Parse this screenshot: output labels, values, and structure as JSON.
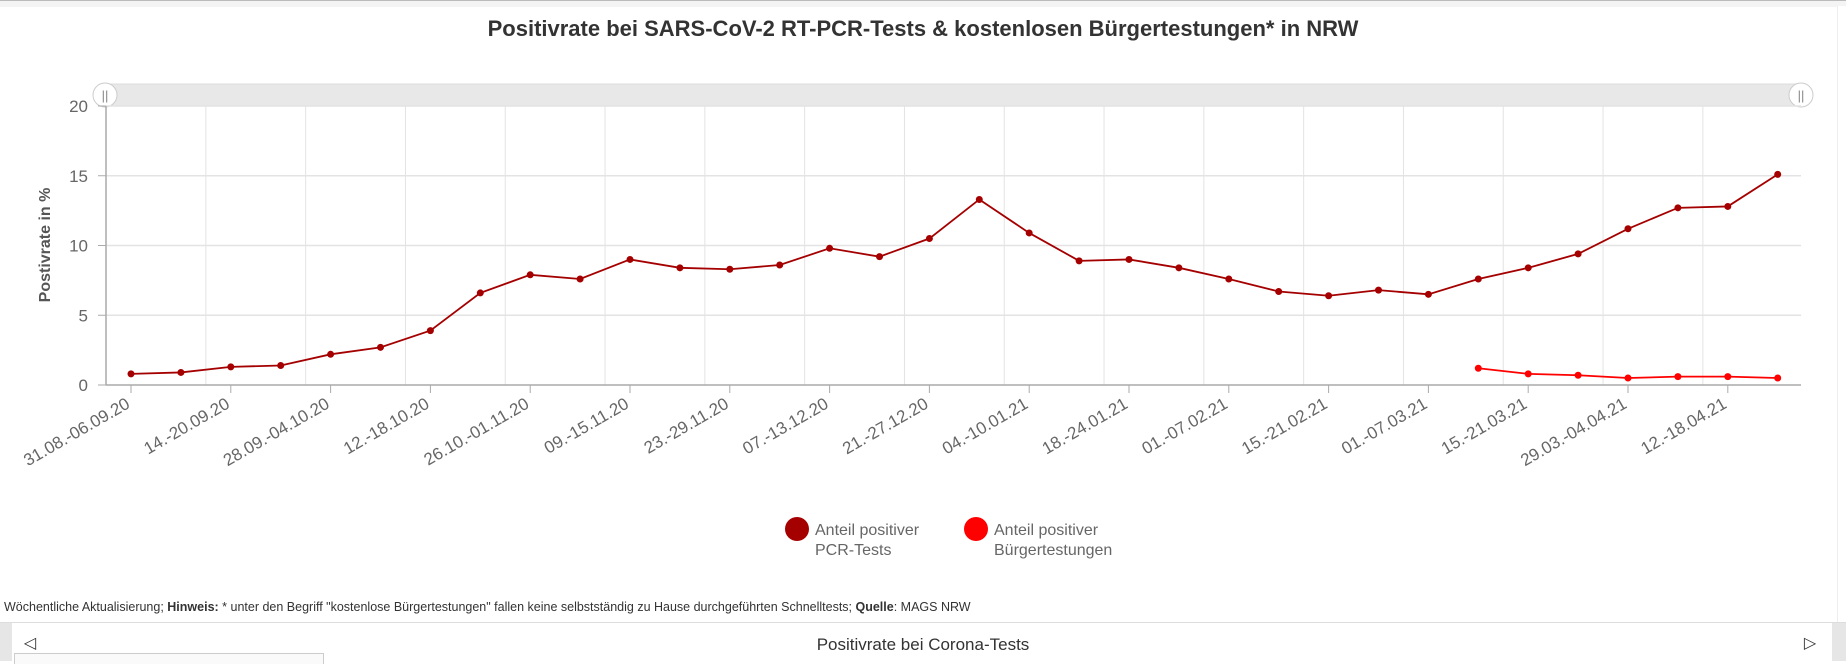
{
  "chart_data": {
    "type": "line",
    "title": "Positivrate bei SARS-CoV-2 RT-PCR-Tests & kostenlosen Bürgertestungen* in NRW",
    "xlabel": "",
    "ylabel": "Postivrate in %",
    "ylim": [
      0,
      20
    ],
    "yticks": [
      0,
      5,
      10,
      15,
      20
    ],
    "grid": true,
    "legend_position": "bottom",
    "x_tick_labels": [
      "31.08.-06.09.20",
      "14.-20.09.20",
      "28.09.-04.10.20",
      "12.-18.10.20",
      "26.10.-01.11.20",
      "09.-15.11.20",
      "23.-29.11.20",
      "07.-13.12.20",
      "21.-27.12.20",
      "04.-10.01.21",
      "18.-24.01.21",
      "01.-07.02.21",
      "15.-21.02.21",
      "01.-07.03.21",
      "15.-21.03.21",
      "29.03.-04.04.21",
      "12.-18.04.21"
    ],
    "x_tick_every": 2,
    "n_weeks": 34,
    "series": [
      {
        "name": "Anteil positiver PCR-Tests",
        "legend_lines": [
          "Anteil positiver",
          "PCR-Tests"
        ],
        "color": "#a50000",
        "start_index": 0,
        "values": [
          0.8,
          0.9,
          1.3,
          1.4,
          2.2,
          2.7,
          3.9,
          6.6,
          7.9,
          7.6,
          9.0,
          8.4,
          8.3,
          8.6,
          9.8,
          9.2,
          10.5,
          13.3,
          10.9,
          8.9,
          9.0,
          8.4,
          7.6,
          6.7,
          6.4,
          6.8,
          6.5,
          7.6,
          8.4,
          9.4,
          11.2,
          12.7,
          12.8,
          15.1
        ]
      },
      {
        "name": "Anteil positiver Bürgertestungen",
        "legend_lines": [
          "Anteil positiver",
          "Bürgertestungen"
        ],
        "color": "#ff0000",
        "start_index": 27,
        "values": [
          1.2,
          0.8,
          0.7,
          0.5,
          0.6,
          0.6,
          0.5
        ]
      }
    ]
  },
  "footer": {
    "prefix": "Wöchentliche Aktualisierung; ",
    "hint_label": "Hinweis:",
    "hint_text": " * unter den Begriff \"kostenlose Bürgertestungen\" fallen keine selbstständig zu Hause durchgeführten Schnelltests; ",
    "source_label": "Quelle",
    "source_text": ": MAGS NRW"
  },
  "nav": {
    "title": "Positivrate bei Corona-Tests",
    "prev_icon": "◁",
    "next_icon": "▷"
  },
  "range_handle_icon": "||"
}
